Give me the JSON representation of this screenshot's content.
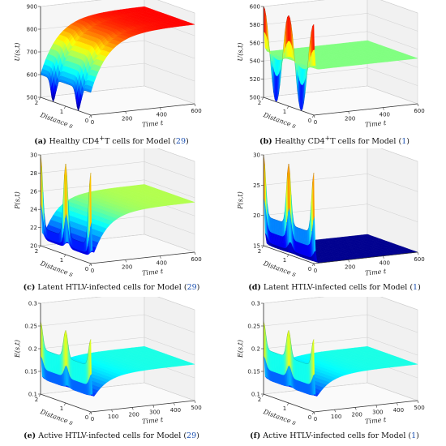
{
  "colors": {
    "colormap": [
      "#00008f",
      "#0000ff",
      "#0080ff",
      "#00ffff",
      "#80ff80",
      "#ffff00",
      "#ff8000",
      "#ff0000",
      "#800000"
    ],
    "axis": "#333333",
    "grid": "#cfcfcf",
    "reference": "#1a4fb0"
  },
  "chart_data": [
    {
      "type": "surface",
      "panel_label": "(a)",
      "caption_text": "Healthy CD4",
      "caption_sup": "+",
      "caption_tail": "T cells for Model (",
      "caption_ref": "29",
      "caption_end": ")",
      "zlabel": "U(s,t)",
      "xlabel": "Time t",
      "ylabel": "Distance s",
      "zlim": [
        500,
        900
      ],
      "zticks": [
        "500",
        "600",
        "700",
        "800",
        "900"
      ],
      "tticks": [
        "0",
        "200",
        "400",
        "600"
      ],
      "sticks": [
        "0",
        "1",
        "2"
      ],
      "tmax": 600,
      "initial_profile": {
        "base": 600,
        "amplitude": 100,
        "dips": [
          0.5,
          1.5
        ]
      },
      "steady_state": 850,
      "fast_rate": 0.01,
      "colormap_range": [
        500,
        900
      ]
    },
    {
      "type": "surface",
      "panel_label": "(b)",
      "caption_text": "Healthy CD4",
      "caption_sup": "+",
      "caption_tail": "T cells for Model (",
      "caption_ref": "1",
      "caption_end": ")",
      "zlabel": "U(s,t)",
      "xlabel": "Time t",
      "ylabel": "Distance s",
      "zlim": [
        500,
        600
      ],
      "zticks": [
        "500",
        "520",
        "540",
        "560",
        "580",
        "600"
      ],
      "tticks": [
        "0",
        "200",
        "400",
        "600"
      ],
      "sticks": [
        "0",
        "1",
        "2"
      ],
      "tmax": 600,
      "initial_profile": {
        "base": 550,
        "amplitude": 50,
        "mode": "cos"
      },
      "steady_state": 550,
      "fast_rate": 0.25,
      "colormap_range": [
        500,
        600
      ]
    },
    {
      "type": "surface",
      "panel_label": "(c)",
      "caption_text": "Latent HTLV-infected cells for Model (",
      "caption_ref": "29",
      "caption_end": ")",
      "zlabel": "P(s,t)",
      "xlabel": "Time t",
      "ylabel": "Distance s",
      "zlim": [
        20,
        30
      ],
      "zticks": [
        "20",
        "22",
        "24",
        "26",
        "28",
        "30"
      ],
      "tticks": [
        "0",
        "200",
        "400",
        "600"
      ],
      "sticks": [
        "0",
        "1",
        "2"
      ],
      "tmax": 600,
      "initial_profile": {
        "base": 22,
        "amplitude": 8,
        "peaks": [
          0,
          1,
          2
        ]
      },
      "dip_value": 20,
      "steady_state": 25.5,
      "fast_rate": 0.25,
      "slow_rate": 0.012,
      "colormap_range": [
        20,
        30
      ]
    },
    {
      "type": "surface",
      "panel_label": "(d)",
      "caption_text": "Latent HTLV-infected cells for Model (",
      "caption_ref": "1",
      "caption_end": ")",
      "zlabel": "P(s,t)",
      "xlabel": "Time t",
      "ylabel": "Distance s",
      "zlim": [
        15,
        30
      ],
      "zticks": [
        "15",
        "20",
        "25",
        "30"
      ],
      "tticks": [
        "0",
        "200",
        "400",
        "600"
      ],
      "sticks": [
        "0",
        "1",
        "2"
      ],
      "tmax": 600,
      "initial_profile": {
        "base": 20,
        "amplitude": 10,
        "peaks": [
          0,
          1,
          2
        ]
      },
      "steady_state": 15,
      "fast_rate": 0.2,
      "colormap_range": [
        15,
        30
      ]
    },
    {
      "type": "surface",
      "panel_label": "(e)",
      "caption_text": "Active HTLV-infected cells for Model (",
      "caption_ref": "29",
      "caption_end": ")",
      "zlabel": "E(s,t)",
      "xlabel": "Time t",
      "ylabel": "Distance s",
      "zlim": [
        0.1,
        0.3
      ],
      "zticks": [
        "0.1",
        "0.15",
        "0.2",
        "0.25",
        "0.3"
      ],
      "tticks": [
        "0",
        "100",
        "200",
        "300",
        "400",
        "500"
      ],
      "sticks": [
        "0",
        "1",
        "2"
      ],
      "tmax": 500,
      "initial_profile": {
        "base": 0.2,
        "amplitude": 0.06,
        "peaks": [
          0,
          1,
          2
        ]
      },
      "dip_value": 0.12,
      "steady_state": 0.18,
      "fast_rate": 0.3,
      "slow_rate": 0.015,
      "colormap_range": [
        0.1,
        0.3
      ]
    },
    {
      "type": "surface",
      "panel_label": "(f)",
      "caption_text": "Active HTLV-infected cells for Model (",
      "caption_ref": "1",
      "caption_end": ")",
      "zlabel": "E(s,t)",
      "xlabel": "Time t",
      "ylabel": "Distance s",
      "zlim": [
        0.1,
        0.3
      ],
      "zticks": [
        "0.1",
        "0.15",
        "0.2",
        "0.25",
        "0.3"
      ],
      "tticks": [
        "0",
        "100",
        "200",
        "300",
        "400",
        "500"
      ],
      "sticks": [
        "0",
        "1",
        "2"
      ],
      "tmax": 500,
      "initial_profile": {
        "base": 0.2,
        "amplitude": 0.06,
        "peaks": [
          0,
          1,
          2
        ]
      },
      "dip_value": 0.12,
      "steady_state": 0.18,
      "fast_rate": 0.3,
      "slow_rate": 0.015,
      "colormap_range": [
        0.1,
        0.3
      ]
    }
  ]
}
